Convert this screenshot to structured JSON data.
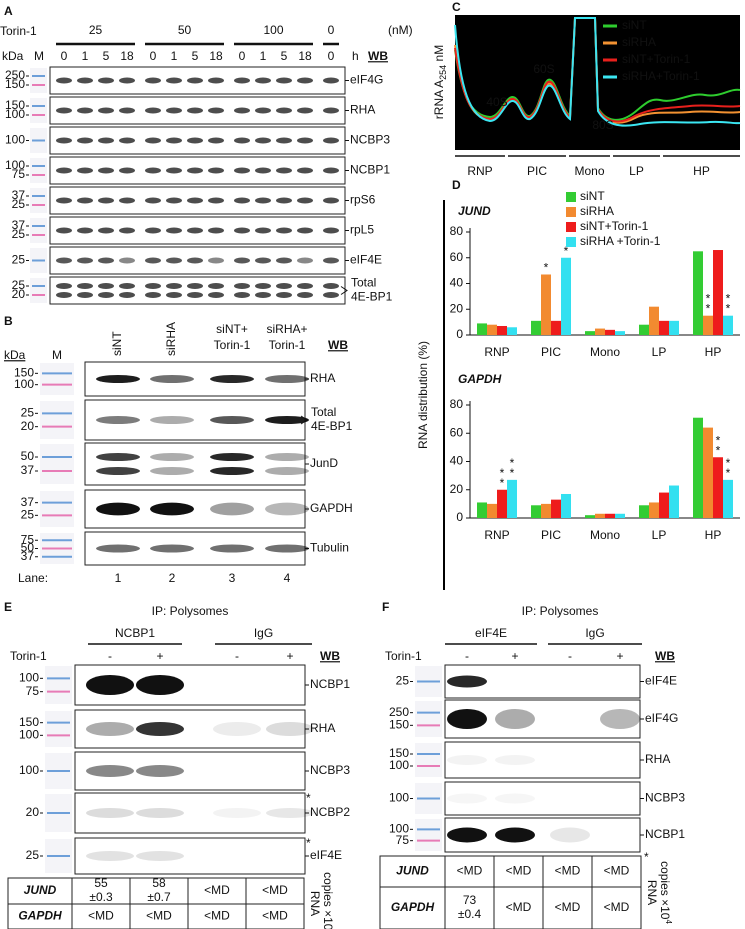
{
  "panel_a": {
    "letter": "A",
    "treatment": "Torin-1",
    "doses": [
      "25",
      "50",
      "100",
      "0"
    ],
    "unit": "(nM)",
    "kda": "kDa",
    "marker": "M",
    "time_unit": "h",
    "times": [
      "0",
      "1",
      "5",
      "18",
      "0",
      "1",
      "5",
      "18",
      "0",
      "1",
      "5",
      "18",
      "0"
    ],
    "wb": "WB",
    "rows": [
      {
        "markers": [
          "250",
          "150"
        ],
        "label": "eIF4G"
      },
      {
        "markers": [
          "150",
          "100"
        ],
        "label": "RHA"
      },
      {
        "markers": [
          "100"
        ],
        "label": "NCBP3"
      },
      {
        "markers": [
          "100",
          "75"
        ],
        "label": "NCBP1"
      },
      {
        "markers": [
          "37",
          "25"
        ],
        "label": "rpS6"
      },
      {
        "markers": [
          "37",
          "25"
        ],
        "label": "rpL5"
      },
      {
        "markers": [
          "25"
        ],
        "label": "eIF4E"
      },
      {
        "markers": [
          "25",
          "20"
        ],
        "label": [
          "Total",
          "4E-BP1"
        ]
      }
    ]
  },
  "panel_b": {
    "letter": "B",
    "kda": "kDa",
    "marker": "M",
    "lanes": [
      [
        "siNT"
      ],
      [
        "siRHA"
      ],
      [
        "siNT+",
        "Torin-1"
      ],
      [
        "siRHA+",
        "Torin-1"
      ]
    ],
    "wb": "WB",
    "rows": [
      {
        "markers": [
          "150",
          "100"
        ],
        "label": "RHA"
      },
      {
        "markers": [
          "25",
          "20"
        ],
        "label": [
          "Total",
          "4E-BP1"
        ]
      },
      {
        "markers": [
          "50",
          "37"
        ],
        "label": "JunD"
      },
      {
        "markers": [
          "37",
          "25"
        ],
        "label": "GAPDH"
      },
      {
        "markers": [
          "75",
          "50",
          "37"
        ],
        "label": "Tubulin"
      }
    ],
    "lane_title": "Lane:",
    "lane_numbers": [
      "1",
      "2",
      "3",
      "4"
    ]
  },
  "panel_c": {
    "letter": "C",
    "ylabel": "rRNA A",
    "ylabel_sub": "254",
    "ylabel_unit": " nM",
    "peaks": [
      "40S",
      "60S",
      "80S"
    ],
    "legend": [
      {
        "name": "siNT",
        "color": "#2ecc2e"
      },
      {
        "name": "siRHA",
        "color": "#f39232"
      },
      {
        "name": "siNT+Torin-1",
        "color": "#e8201c"
      },
      {
        "name": "siRHA+Torin-1",
        "color": "#3be6f2"
      }
    ],
    "fractions": [
      "RNP",
      "PIC",
      "Mono",
      "LP",
      "HP"
    ]
  },
  "panel_d": {
    "letter": "D",
    "ylabel": "RNA distribution (%)"
  },
  "chart_data": [
    {
      "type": "bar",
      "title": "JUND",
      "categories": [
        "RNP",
        "PIC",
        "Mono",
        "LP",
        "HP"
      ],
      "ylim": [
        0,
        80
      ],
      "yticks": [
        0,
        20,
        40,
        60,
        80
      ],
      "series": [
        {
          "name": "siNT",
          "color": "#33cc33",
          "values": [
            9,
            11,
            3,
            8,
            65
          ]
        },
        {
          "name": "siRHA",
          "color": "#f28a30",
          "values": [
            8,
            47,
            5,
            22,
            15
          ],
          "significance": [
            null,
            "*",
            null,
            null,
            "**"
          ]
        },
        {
          "name": "siNT+Torin-1",
          "color": "#ee1c1c",
          "values": [
            7,
            11,
            4,
            11,
            66
          ]
        },
        {
          "name": "siRHA +Torin-1",
          "color": "#33e0f0",
          "values": [
            6,
            60,
            3,
            11,
            15
          ],
          "significance": [
            null,
            "*",
            null,
            null,
            "**"
          ]
        }
      ]
    },
    {
      "type": "bar",
      "title": "GAPDH",
      "categories": [
        "RNP",
        "PIC",
        "Mono",
        "LP",
        "HP"
      ],
      "ylim": [
        0,
        80
      ],
      "yticks": [
        0,
        20,
        40,
        60,
        80
      ],
      "series": [
        {
          "color": "#33cc33",
          "values": [
            11,
            9,
            2,
            9,
            71
          ]
        },
        {
          "color": "#f28a30",
          "values": [
            10,
            10,
            3,
            11,
            64
          ]
        },
        {
          "color": "#ee1c1c",
          "values": [
            20,
            13,
            3,
            18,
            43
          ],
          "significance": [
            "**",
            null,
            null,
            null,
            "**"
          ]
        },
        {
          "color": "#33e0f0",
          "values": [
            27,
            17,
            3,
            23,
            27
          ],
          "significance": [
            "**",
            null,
            null,
            null,
            "**"
          ]
        }
      ]
    }
  ],
  "panel_e": {
    "letter": "E",
    "title": "IP: Polysomes",
    "groups": [
      "NCBP1",
      "IgG"
    ],
    "treatment": "Torin-1",
    "signs": [
      "-",
      "+",
      "-",
      "+"
    ],
    "wb": "WB",
    "rows": [
      {
        "markers": [
          "100",
          "75"
        ],
        "label": "NCBP1"
      },
      {
        "markers": [
          "150",
          "100"
        ],
        "label": "RHA"
      },
      {
        "markers": [
          "100"
        ],
        "label": "NCBP3"
      },
      {
        "markers": [
          "20"
        ],
        "label": "NCBP2",
        "star": "*"
      },
      {
        "markers": [
          "25"
        ],
        "label": "eIF4E",
        "star": "*"
      }
    ],
    "table": {
      "rows": [
        {
          "gene": "JUND",
          "cells": [
            [
              "55",
              "±0.3"
            ],
            [
              "58",
              "±0.7"
            ],
            [
              "<MD"
            ],
            [
              "<MD"
            ]
          ]
        },
        {
          "gene": "GAPDH",
          "cells": [
            [
              "<MD"
            ],
            [
              "<MD"
            ],
            [
              "<MD"
            ],
            [
              "<MD"
            ]
          ]
        }
      ],
      "unit": [
        "RNA",
        "copies ×10"
      ],
      "unit_sup": "4"
    }
  },
  "panel_f": {
    "letter": "F",
    "title": "IP: Polysomes",
    "groups": [
      "eIF4E",
      "IgG"
    ],
    "treatment": "Torin-1",
    "signs": [
      "-",
      "+",
      "-",
      "+"
    ],
    "wb": "WB",
    "rows": [
      {
        "markers": [
          "25"
        ],
        "label": "eIF4E"
      },
      {
        "markers": [
          "250",
          "150"
        ],
        "label": "eIF4G"
      },
      {
        "markers": [
          "150",
          "100"
        ],
        "label": "RHA"
      },
      {
        "markers": [
          "100"
        ],
        "label": "NCBP3"
      },
      {
        "markers": [
          "100",
          "75"
        ],
        "label": "NCBP1",
        "star": "*"
      }
    ],
    "table": {
      "rows": [
        {
          "gene": "JUND",
          "cells": [
            [
              "<MD"
            ],
            [
              "<MD"
            ],
            [
              "<MD"
            ],
            [
              "<MD"
            ]
          ]
        },
        {
          "gene": "GAPDH",
          "cells": [
            [
              "73",
              "±0.4"
            ],
            [
              "<MD"
            ],
            [
              "<MD"
            ],
            [
              "<MD"
            ]
          ]
        }
      ],
      "unit": [
        "RNA",
        "copies ×10"
      ],
      "unit_sup": "4"
    }
  }
}
